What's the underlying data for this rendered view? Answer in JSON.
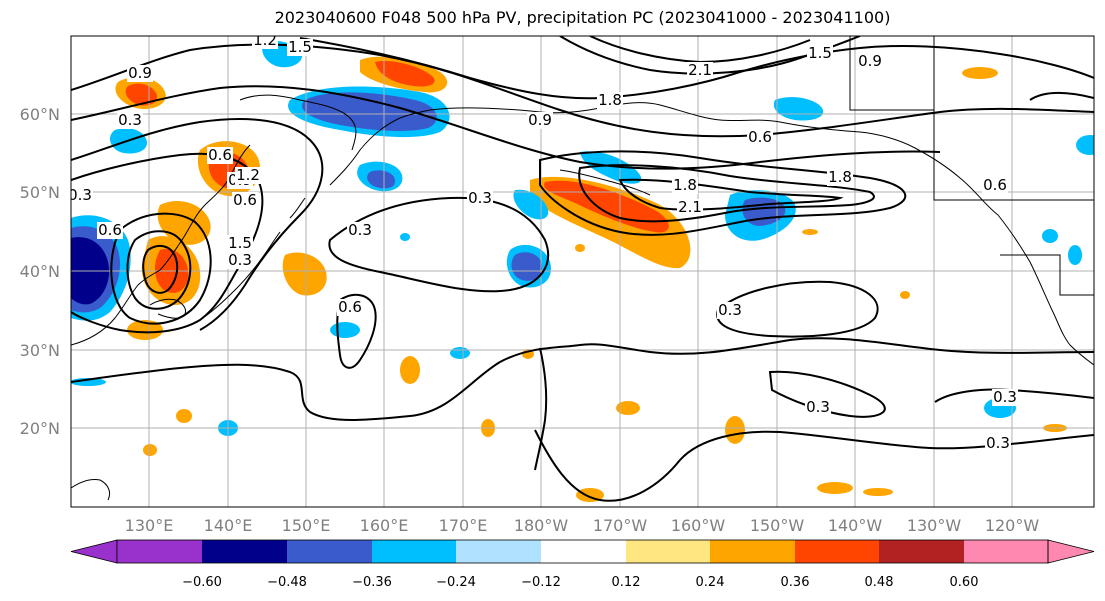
{
  "title": "2023040600 F048 500 hPa PV, precipitation PC (2023041000 - 2023041100)",
  "lat_labels": [
    "60°N",
    "50°N",
    "40°N",
    "30°N",
    "20°N"
  ],
  "lon_labels": [
    "130°E",
    "140°E",
    "150°E",
    "160°E",
    "170°E",
    "180°W",
    "170°W",
    "160°W",
    "150°W",
    "140°W",
    "130°W",
    "120°W"
  ],
  "colorbar": {
    "tick_labels": [
      "−0.60",
      "−0.48",
      "−0.36",
      "−0.24",
      "−0.12",
      "0.12",
      "0.24",
      "0.36",
      "0.48",
      "0.60"
    ],
    "colors": [
      "#9932cc",
      "#00008b",
      "#3a5bcc",
      "#00bfff",
      "#b0e2ff",
      "#ffffff",
      "#ffe680",
      "#ffa500",
      "#ff4500",
      "#b22222",
      "#ff88b0"
    ]
  },
  "contour_labels": [
    "0.9",
    "0.3",
    "0.6",
    "1.5",
    "1.2",
    "1.8",
    "2.1",
    "0.9",
    "0.6",
    "1.8",
    "2.1",
    "1.5",
    "0.9",
    "0.3",
    "0.3",
    "0.6",
    "0.3",
    "0.6",
    "0.9",
    "1.2",
    "1.5",
    "0.3",
    "0.3",
    "0.3",
    "0.3",
    "0.6",
    "1.8",
    "0.6",
    "0.3"
  ]
}
